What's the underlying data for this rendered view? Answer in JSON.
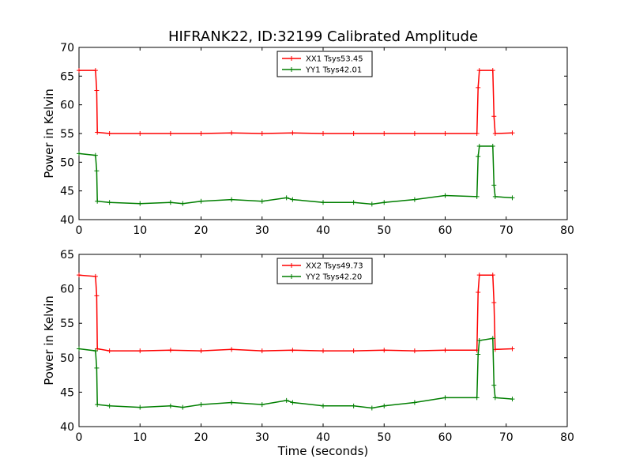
{
  "chart_data": [
    {
      "type": "line",
      "title": "HIFRANK22, ID:32199 Calibrated Amplitude",
      "xlabel": "",
      "ylabel": "Power in Kelvin",
      "xlim": [
        0,
        80
      ],
      "ylim": [
        40,
        70
      ],
      "x_ticks": [
        0,
        10,
        20,
        30,
        40,
        50,
        60,
        70,
        80
      ],
      "y_ticks": [
        40,
        45,
        50,
        55,
        60,
        65,
        70
      ],
      "grid": false,
      "legend_position": "top-center",
      "series": [
        {
          "name": "XX1 Tsys53.45",
          "color": "#ff0000",
          "marker": "+",
          "x": [
            0,
            2.7,
            2.9,
            3.0,
            5,
            10,
            15,
            20,
            25,
            30,
            35,
            40,
            45,
            50,
            55,
            60,
            65.2,
            65.4,
            65.6,
            67.8,
            68.0,
            68.2,
            71
          ],
          "y": [
            66.0,
            66.0,
            62.5,
            55.2,
            55.0,
            55.0,
            55.0,
            55.0,
            55.1,
            55.0,
            55.1,
            55.0,
            55.0,
            55.0,
            55.0,
            55.0,
            55.0,
            63.0,
            66.0,
            66.0,
            58.0,
            55.0,
            55.1
          ]
        },
        {
          "name": "YY1 Tsys42.01",
          "color": "#007f00",
          "marker": "+",
          "x": [
            0,
            2.7,
            2.9,
            3.0,
            5,
            10,
            15,
            17,
            20,
            25,
            30,
            34,
            35,
            40,
            45,
            48,
            50,
            55,
            60,
            65.2,
            65.4,
            65.6,
            67.8,
            68.0,
            68.2,
            71
          ],
          "y": [
            51.5,
            51.2,
            48.5,
            43.2,
            43.0,
            42.8,
            43.0,
            42.8,
            43.2,
            43.5,
            43.2,
            43.8,
            43.5,
            43.0,
            43.0,
            42.7,
            43.0,
            43.5,
            44.2,
            44.0,
            51.0,
            52.8,
            52.8,
            46.0,
            44.0,
            43.8
          ]
        }
      ]
    },
    {
      "type": "line",
      "title": "",
      "xlabel": "Time (seconds)",
      "ylabel": "Power in Kelvin",
      "xlim": [
        0,
        80
      ],
      "ylim": [
        40,
        65
      ],
      "x_ticks": [
        0,
        10,
        20,
        30,
        40,
        50,
        60,
        70,
        80
      ],
      "y_ticks": [
        40,
        45,
        50,
        55,
        60,
        65
      ],
      "grid": false,
      "legend_position": "top-center",
      "series": [
        {
          "name": "XX2 Tsys49.73",
          "color": "#ff0000",
          "marker": "+",
          "x": [
            0,
            2.7,
            2.9,
            3.0,
            5,
            10,
            15,
            20,
            25,
            30,
            35,
            40,
            45,
            50,
            55,
            60,
            65.2,
            65.4,
            65.6,
            67.8,
            68.0,
            68.2,
            71
          ],
          "y": [
            62.0,
            61.8,
            59.0,
            51.3,
            51.0,
            51.0,
            51.1,
            51.0,
            51.2,
            51.0,
            51.1,
            51.0,
            51.0,
            51.1,
            51.0,
            51.1,
            51.1,
            59.5,
            62.0,
            62.0,
            58.0,
            51.2,
            51.3
          ]
        },
        {
          "name": "YY2 Tsys42.20",
          "color": "#007f00",
          "marker": "+",
          "x": [
            0,
            2.7,
            2.9,
            3.0,
            5,
            10,
            15,
            17,
            20,
            25,
            30,
            34,
            35,
            40,
            45,
            48,
            50,
            55,
            60,
            65.2,
            65.4,
            65.6,
            67.8,
            68.0,
            68.2,
            71
          ],
          "y": [
            51.3,
            51.0,
            48.5,
            43.2,
            43.0,
            42.8,
            43.0,
            42.8,
            43.2,
            43.5,
            43.2,
            43.8,
            43.5,
            43.0,
            43.0,
            42.7,
            43.0,
            43.5,
            44.2,
            44.2,
            50.5,
            52.5,
            52.8,
            46.0,
            44.2,
            44.0
          ]
        }
      ]
    }
  ]
}
